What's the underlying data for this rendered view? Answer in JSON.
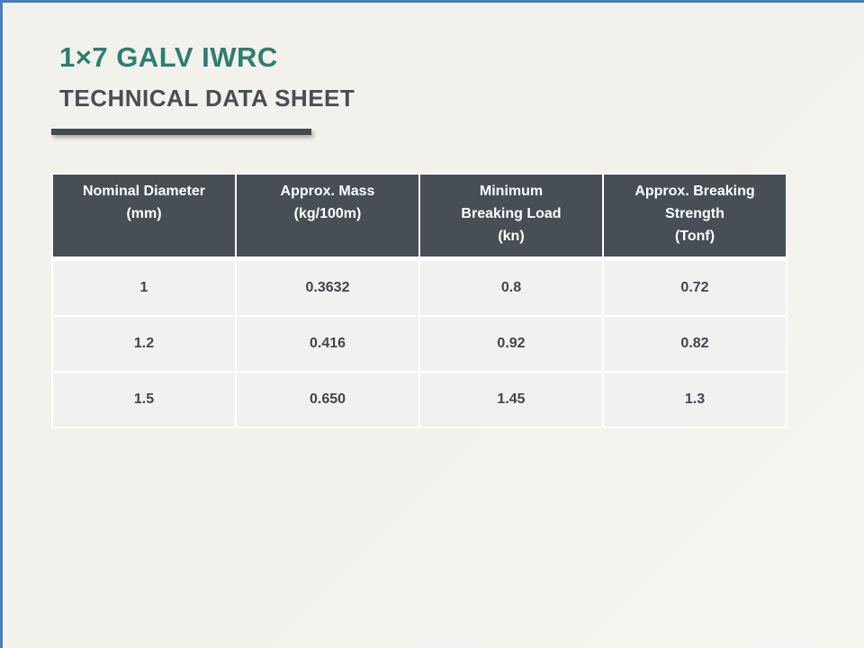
{
  "slide": {
    "title": "1×7 GALV IWRC",
    "subtitle": "TECHNICAL DATA SHEET"
  },
  "table": {
    "headers": [
      "Nominal Diameter\n(mm)",
      "Approx. Mass\n(kg/100m)",
      "Minimum\nBreaking Load\n(kn)",
      "Approx. Breaking\nStrength\n(Tonf)"
    ],
    "rows": [
      [
        "1",
        "0.3632",
        "0.8",
        "0.72"
      ],
      [
        "1.2",
        "0.416",
        "0.92",
        "0.82"
      ],
      [
        "1.5",
        "0.650",
        "1.45",
        "1.3"
      ]
    ]
  },
  "colors": {
    "accent_teal": "#2E7D72",
    "slate_dark": "#474E54",
    "row_background": "#F1F1F0",
    "frame_blue": "#4C7EB8",
    "page_background": "#F2F1EB"
  }
}
